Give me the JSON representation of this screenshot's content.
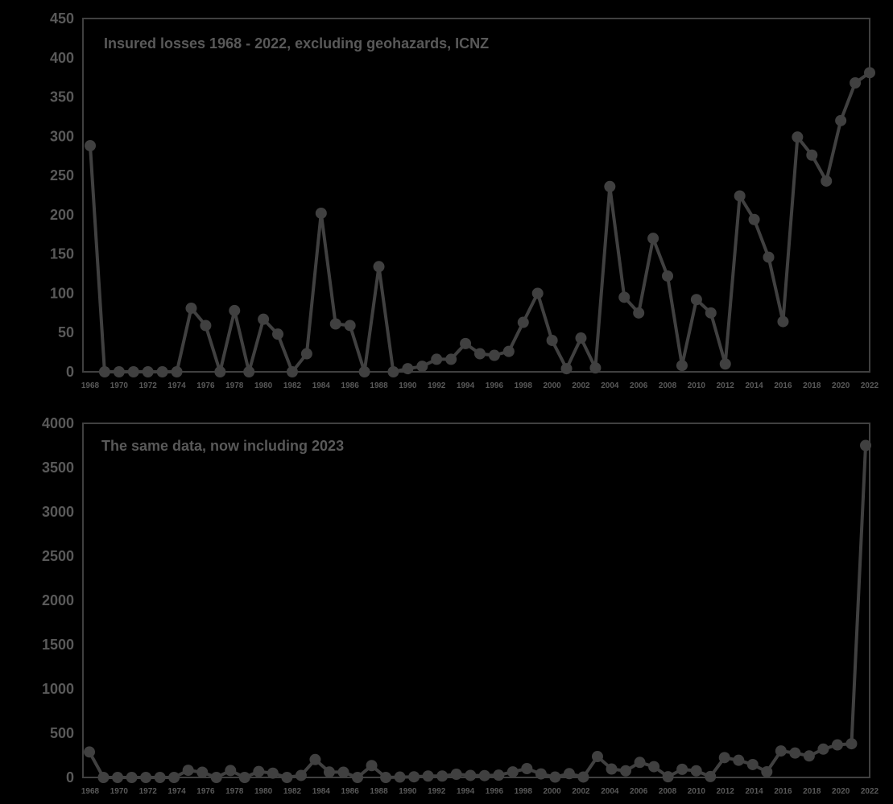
{
  "chart_data": [
    {
      "type": "line",
      "title": "Insured losses 1968 - 2022, excluding geohazards, ICNZ",
      "xlabel": "",
      "ylabel": "",
      "ylim": [
        0,
        450
      ],
      "yticks": [
        "0",
        "50",
        "100",
        "150",
        "200",
        "250",
        "300",
        "350",
        "400",
        "450"
      ],
      "xticks": [
        "1968",
        "1970",
        "1972",
        "1974",
        "1976",
        "1978",
        "1980",
        "1982",
        "1984",
        "1986",
        "1988",
        "1990",
        "1992",
        "1994",
        "1996",
        "1998",
        "2000",
        "2002",
        "2004",
        "2006",
        "2008",
        "2010",
        "2012",
        "2014",
        "2016",
        "2018",
        "2020",
        "2022"
      ],
      "grid": false,
      "colors": {
        "line": "#404040",
        "text": "#595959",
        "background": "#000000"
      },
      "x": [
        1968,
        1969,
        1970,
        1971,
        1972,
        1973,
        1974,
        1975,
        1976,
        1977,
        1978,
        1979,
        1980,
        1981,
        1982,
        1983,
        1984,
        1985,
        1986,
        1987,
        1988,
        1989,
        1990,
        1991,
        1992,
        1993,
        1994,
        1995,
        1996,
        1997,
        1998,
        1999,
        2000,
        2001,
        2002,
        2003,
        2004,
        2005,
        2006,
        2007,
        2008,
        2009,
        2010,
        2011,
        2012,
        2013,
        2014,
        2015,
        2016,
        2017,
        2018,
        2019,
        2020,
        2021,
        2022
      ],
      "values": [
        288,
        0,
        0,
        0,
        0,
        0,
        0,
        81,
        59,
        0,
        78,
        0,
        67,
        48,
        0,
        23,
        202,
        61,
        59,
        0,
        134,
        0,
        4,
        7,
        16,
        16,
        36,
        23,
        21,
        26,
        63,
        100,
        40,
        4,
        43,
        5,
        236,
        95,
        75,
        170,
        122,
        8,
        92,
        75,
        10,
        224,
        194,
        146,
        64,
        299,
        276,
        243,
        320,
        368,
        381
      ]
    },
    {
      "type": "line",
      "title": "The same data, now including 2023",
      "xlabel": "",
      "ylabel": "",
      "ylim": [
        0,
        4000
      ],
      "yticks": [
        "0",
        "500",
        "1000",
        "1500",
        "2000",
        "2500",
        "3000",
        "3500",
        "4000"
      ],
      "xticks": [
        "1968",
        "1970",
        "1972",
        "1974",
        "1976",
        "1978",
        "1980",
        "1982",
        "1984",
        "1986",
        "1988",
        "1990",
        "1992",
        "1994",
        "1996",
        "1998",
        "2000",
        "2002",
        "2004",
        "2006",
        "2008",
        "2010",
        "2012",
        "2014",
        "2016",
        "2018",
        "2020",
        "2022"
      ],
      "grid": false,
      "colors": {
        "line": "#404040",
        "text": "#595959",
        "background": "#000000"
      },
      "x": [
        1968,
        1969,
        1970,
        1971,
        1972,
        1973,
        1974,
        1975,
        1976,
        1977,
        1978,
        1979,
        1980,
        1981,
        1982,
        1983,
        1984,
        1985,
        1986,
        1987,
        1988,
        1989,
        1990,
        1991,
        1992,
        1993,
        1994,
        1995,
        1996,
        1997,
        1998,
        1999,
        2000,
        2001,
        2002,
        2003,
        2004,
        2005,
        2006,
        2007,
        2008,
        2009,
        2010,
        2011,
        2012,
        2013,
        2014,
        2015,
        2016,
        2017,
        2018,
        2019,
        2020,
        2021,
        2022,
        2023
      ],
      "values": [
        288,
        0,
        0,
        0,
        0,
        0,
        0,
        81,
        59,
        0,
        78,
        0,
        67,
        48,
        0,
        23,
        202,
        61,
        59,
        0,
        134,
        0,
        4,
        7,
        16,
        16,
        36,
        23,
        21,
        26,
        63,
        100,
        40,
        4,
        43,
        5,
        236,
        95,
        75,
        170,
        122,
        8,
        92,
        75,
        10,
        224,
        194,
        146,
        64,
        299,
        276,
        243,
        320,
        368,
        381,
        3750
      ]
    }
  ]
}
